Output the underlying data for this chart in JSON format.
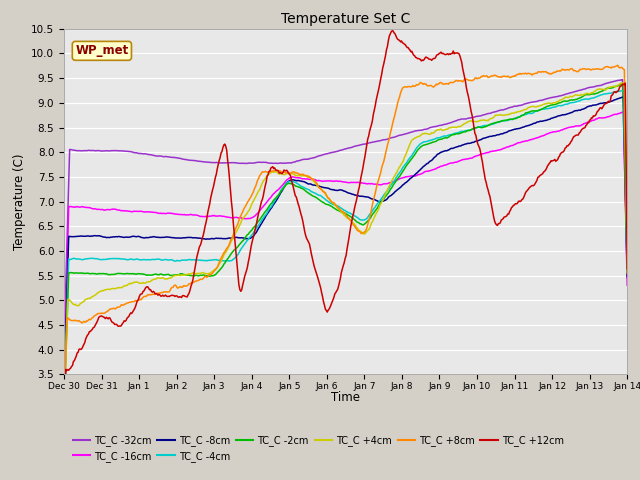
{
  "title": "Temperature Set C",
  "xlabel": "Time",
  "ylabel": "Temperature (C)",
  "ylim": [
    3.5,
    10.5
  ],
  "fig_facecolor": "#d4d4d4",
  "plot_facecolor": "#e8e8e8",
  "wp_met_label": "WP_met",
  "wp_met_color": "#8b0000",
  "wp_met_bg": "#ffffcc",
  "wp_met_border": "#b8860b",
  "series": [
    {
      "label": "TC_C -32cm",
      "color": "#9933cc"
    },
    {
      "label": "TC_C -16cm",
      "color": "#ff00ff"
    },
    {
      "label": "TC_C -8cm",
      "color": "#00008b"
    },
    {
      "label": "TC_C -4cm",
      "color": "#00cccc"
    },
    {
      "label": "TC_C -2cm",
      "color": "#00bb00"
    },
    {
      "label": "TC_C +4cm",
      "color": "#cccc00"
    },
    {
      "label": "TC_C +8cm",
      "color": "#ff8800"
    },
    {
      "label": "TC_C +12cm",
      "color": "#cc0000"
    }
  ],
  "xtick_labels": [
    "Dec 30",
    "Dec 31",
    "Jan 1",
    "Jan 2",
    "Jan 3",
    "Jan 4",
    "Jan 5",
    "Jan 6",
    "Jan 7",
    "Jan 8",
    "Jan 9",
    "Jan 10",
    "Jan 11",
    "Jan 12",
    "Jan 13",
    "Jan 14"
  ],
  "ytick_vals": [
    3.5,
    4.0,
    4.5,
    5.0,
    5.5,
    6.0,
    6.5,
    7.0,
    7.5,
    8.0,
    8.5,
    9.0,
    9.5,
    10.0,
    10.5
  ]
}
